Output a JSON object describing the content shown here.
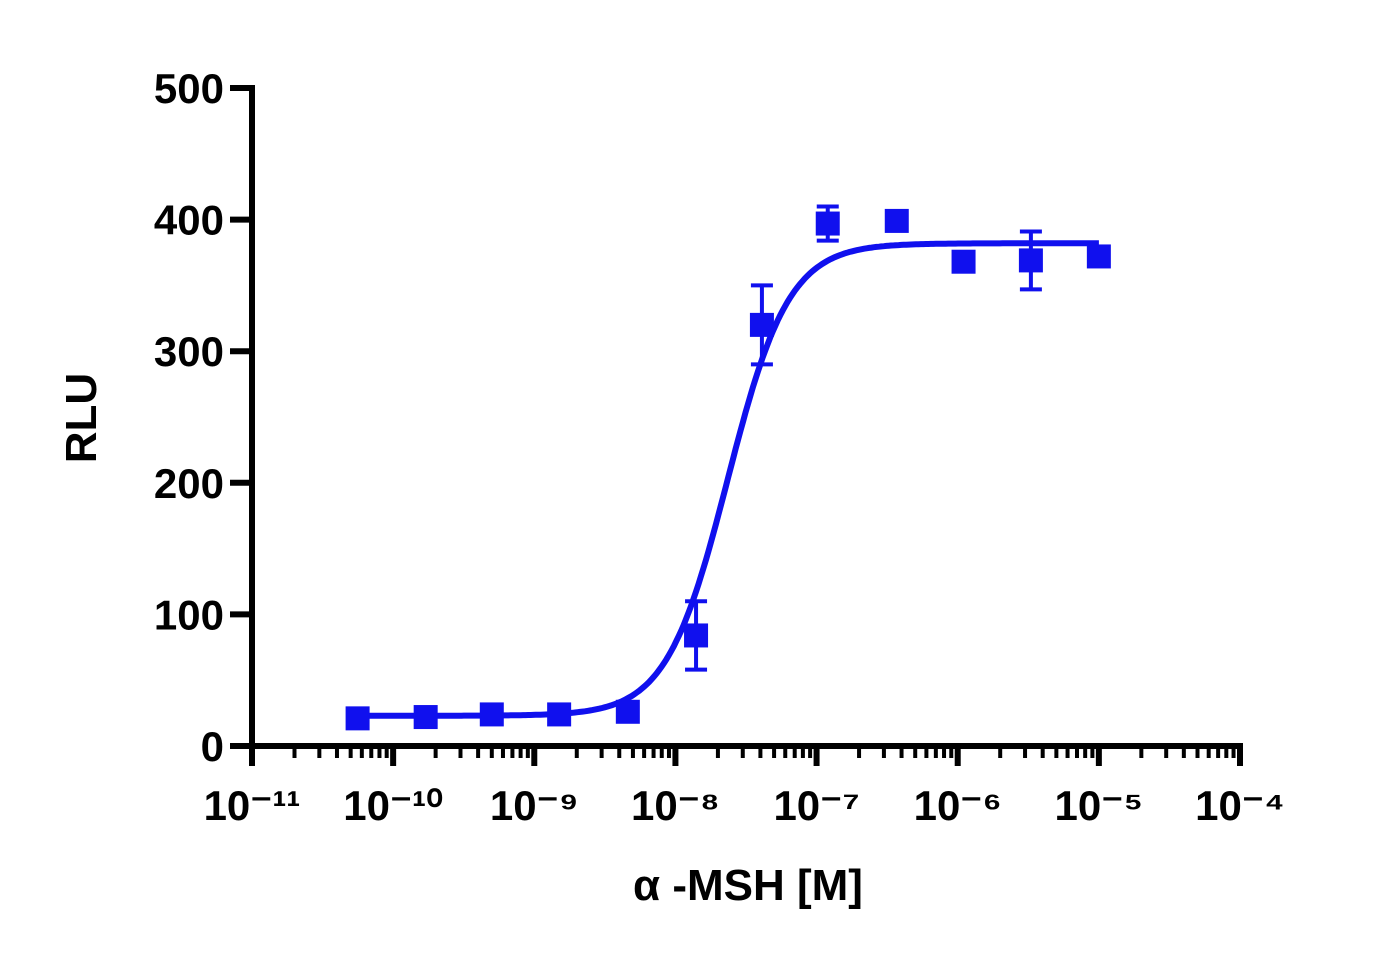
{
  "chart_data": {
    "type": "dose-response",
    "x_label": "α -MSH [M]",
    "y_label": "RLU",
    "xscale": "log",
    "xlim": [
      1e-11,
      0.0001
    ],
    "xticks": [
      {
        "value": 1e-11,
        "label": "10⁻¹¹"
      },
      {
        "value": 1e-10,
        "label": "10⁻¹⁰"
      },
      {
        "value": 1e-09,
        "label": "10⁻⁹"
      },
      {
        "value": 1e-08,
        "label": "10⁻⁸"
      },
      {
        "value": 1e-07,
        "label": "10⁻⁷"
      },
      {
        "value": 1e-06,
        "label": "10⁻⁶"
      },
      {
        "value": 1e-05,
        "label": "10⁻⁵"
      },
      {
        "value": 0.0001,
        "label": "10⁻⁴"
      }
    ],
    "ylim": [
      0,
      500
    ],
    "yticks": [
      0,
      100,
      200,
      300,
      400,
      500
    ],
    "series": [
      {
        "color": "#1010ee",
        "x": [
          5.6e-11,
          1.7e-10,
          5e-10,
          1.5e-09,
          4.6e-09,
          1.4e-08,
          4.1e-08,
          1.2e-07,
          3.7e-07,
          1.1e-06,
          3.3e-06,
          1e-05
        ],
        "values": [
          21,
          22,
          24,
          24,
          26,
          84,
          320,
          397,
          399,
          368,
          369,
          372
        ],
        "errors": [
          2,
          2,
          2,
          2,
          3,
          26,
          30,
          13,
          3,
          4,
          22,
          3
        ]
      }
    ],
    "fit": {
      "bottom": 23,
      "top": 382,
      "logec50": -7.63,
      "hill": 2.0
    }
  }
}
